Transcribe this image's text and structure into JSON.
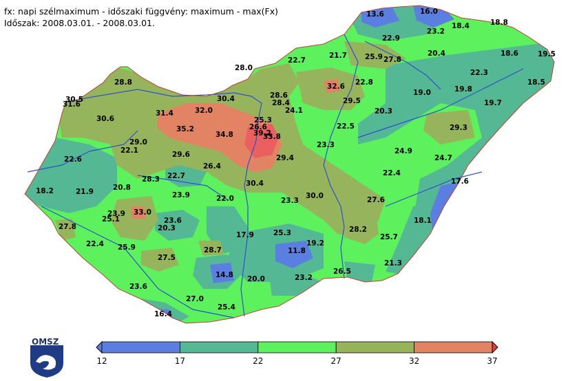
{
  "header": {
    "line1": "fx: napi szélmaximum - időszaki függvény: maximum - max(Fx)",
    "line2": "Időszak: 2008.03.01. - 2008.03.01."
  },
  "logo": {
    "text": "OMSZ",
    "icon": "omsz-logo-icon"
  },
  "legend": {
    "ticks": [
      "12",
      "17",
      "22",
      "27",
      "32",
      "37"
    ],
    "bins": [
      {
        "from": 12,
        "to": 17,
        "color": "#5b7fe0"
      },
      {
        "from": 17,
        "to": 22,
        "color": "#55b894"
      },
      {
        "from": 22,
        "to": 27,
        "color": "#5df25d"
      },
      {
        "from": 27,
        "to": 32,
        "color": "#96b45c"
      },
      {
        "from": 32,
        "to": 37,
        "color": "#e28364"
      }
    ],
    "arrow_colors": {
      "low": "#5b7fe0",
      "high": "#e04040"
    }
  },
  "colors": {
    "blue": "#5b7fe0",
    "teal": "#55b894",
    "green": "#5df25d",
    "olive": "#96b45c",
    "red": "#e28364",
    "river": "#2f4fd0",
    "border": "#c04030"
  },
  "stations": [
    {
      "label": "13.6"
    },
    {
      "label": "16.0"
    },
    {
      "label": "18.4"
    },
    {
      "label": "18.8"
    },
    {
      "label": "22.9"
    },
    {
      "label": "23.2"
    },
    {
      "label": "20.4"
    },
    {
      "label": "18.6"
    },
    {
      "label": "19.5"
    },
    {
      "label": "22.7"
    },
    {
      "label": "21.7"
    },
    {
      "label": "25.9"
    },
    {
      "label": "27.8"
    },
    {
      "label": "22.3"
    },
    {
      "label": "18.5"
    },
    {
      "label": "28.0"
    },
    {
      "label": "28.8"
    },
    {
      "label": "32.6"
    },
    {
      "label": "22.8"
    },
    {
      "label": "19.0"
    },
    {
      "label": "19.8"
    },
    {
      "label": "30.5"
    },
    {
      "label": "31.6"
    },
    {
      "label": "30.4"
    },
    {
      "label": "28.6"
    },
    {
      "label": "28.4"
    },
    {
      "label": "29.5"
    },
    {
      "label": "19.7"
    },
    {
      "label": "31.4"
    },
    {
      "label": "32.0"
    },
    {
      "label": "24.1"
    },
    {
      "label": "20.3"
    },
    {
      "label": "30.6"
    },
    {
      "label": "25.3"
    },
    {
      "label": "29.3"
    },
    {
      "label": "35.2"
    },
    {
      "label": "34.8"
    },
    {
      "label": "26.6"
    },
    {
      "label": "39.2"
    },
    {
      "label": "22.5"
    },
    {
      "label": "33.8"
    },
    {
      "label": "29.0"
    },
    {
      "label": "23.3"
    },
    {
      "label": "22.1"
    },
    {
      "label": "24.9"
    },
    {
      "label": "24.7"
    },
    {
      "label": "22.6"
    },
    {
      "label": "29.6"
    },
    {
      "label": "29.4"
    },
    {
      "label": "26.4"
    },
    {
      "label": "22.4"
    },
    {
      "label": "22.7"
    },
    {
      "label": "17.6"
    },
    {
      "label": "28.3"
    },
    {
      "label": "30.4"
    },
    {
      "label": "18.2"
    },
    {
      "label": "21.9"
    },
    {
      "label": "20.8"
    },
    {
      "label": "23.9"
    },
    {
      "label": "22.0"
    },
    {
      "label": "23.3"
    },
    {
      "label": "30.0"
    },
    {
      "label": "27.6"
    },
    {
      "label": "23.9"
    },
    {
      "label": "33.0"
    },
    {
      "label": "25.1"
    },
    {
      "label": "23.6"
    },
    {
      "label": "18.1"
    },
    {
      "label": "27.8"
    },
    {
      "label": "20.3"
    },
    {
      "label": "28.2"
    },
    {
      "label": "17.9"
    },
    {
      "label": "25.3"
    },
    {
      "label": "25.7"
    },
    {
      "label": "22.4"
    },
    {
      "label": "25.9"
    },
    {
      "label": "28.7"
    },
    {
      "label": "19.2"
    },
    {
      "label": "11.8"
    },
    {
      "label": "27.5"
    },
    {
      "label": "21.3"
    },
    {
      "label": "14.8"
    },
    {
      "label": "20.0"
    },
    {
      "label": "23.2"
    },
    {
      "label": "26.5"
    },
    {
      "label": "23.6"
    },
    {
      "label": "27.0"
    },
    {
      "label": "25.4"
    },
    {
      "label": "16.4"
    }
  ]
}
